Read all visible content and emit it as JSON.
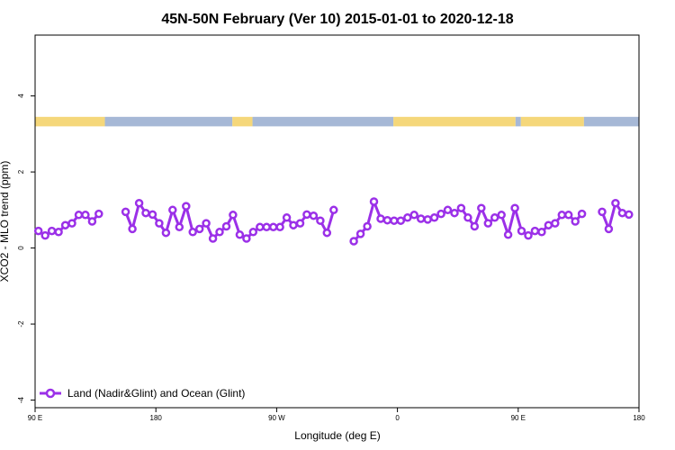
{
  "chart_data": {
    "type": "line",
    "title": "45N-50N February (Ver 10)   2015-01-01 to 2020-12-18",
    "xlabel": "Longitude (deg E)",
    "ylabel": "XCO2 - MLO trend (ppm)",
    "xlim": [
      90,
      540
    ],
    "ylim": [
      -4.2,
      5.6
    ],
    "grid": false,
    "legend_position": "bottom-left",
    "x_ticks": [
      {
        "value": 90,
        "label": "90 E"
      },
      {
        "value": 180,
        "label": "180"
      },
      {
        "value": 270,
        "label": "90 W"
      },
      {
        "value": 360,
        "label": "0"
      },
      {
        "value": 450,
        "label": "90 E"
      },
      {
        "value": 540,
        "label": "180"
      }
    ],
    "y_ticks": [
      {
        "value": -4,
        "label": "-4"
      },
      {
        "value": -2,
        "label": "-2"
      },
      {
        "value": 0,
        "label": "0"
      },
      {
        "value": 2,
        "label": "2"
      },
      {
        "value": 4,
        "label": "4"
      }
    ],
    "land_ocean_strip": {
      "y_range": [
        3.2,
        3.45
      ],
      "land_color": "#f5d77a",
      "ocean_color": "#a6b8d6",
      "segments": [
        {
          "from": 90,
          "to": 142,
          "kind": "land"
        },
        {
          "from": 142,
          "to": 237,
          "kind": "ocean"
        },
        {
          "from": 237,
          "to": 252,
          "kind": "land"
        },
        {
          "from": 252,
          "to": 357,
          "kind": "ocean"
        },
        {
          "from": 357,
          "to": 448,
          "kind": "land"
        },
        {
          "from": 448,
          "to": 452,
          "kind": "ocean"
        },
        {
          "from": 452,
          "to": 499,
          "kind": "land"
        },
        {
          "from": 499,
          "to": 540,
          "kind": "ocean"
        }
      ]
    },
    "series": [
      {
        "name": "Land (Nadir&Glint) and Ocean (Glint)",
        "color": "#9b30e8",
        "segments": [
          [
            [
              92.5,
              0.45
            ],
            [
              97.5,
              0.33
            ],
            [
              102.5,
              0.45
            ],
            [
              107.5,
              0.42
            ],
            [
              112.5,
              0.6
            ],
            [
              117.5,
              0.65
            ],
            [
              122.5,
              0.87
            ],
            [
              127.5,
              0.87
            ],
            [
              132.5,
              0.7
            ],
            [
              137.5,
              0.9
            ]
          ],
          [
            [
              157.5,
              0.95
            ],
            [
              162.5,
              0.5
            ],
            [
              167.5,
              1.18
            ],
            [
              172.5,
              0.92
            ],
            [
              177.5,
              0.88
            ],
            [
              182.5,
              0.65
            ],
            [
              187.5,
              0.4
            ],
            [
              192.5,
              1.0
            ],
            [
              197.5,
              0.55
            ],
            [
              202.5,
              1.1
            ],
            [
              207.5,
              0.42
            ],
            [
              212.5,
              0.5
            ],
            [
              217.5,
              0.65
            ],
            [
              222.5,
              0.25
            ],
            [
              227.5,
              0.42
            ],
            [
              232.5,
              0.57
            ],
            [
              237.5,
              0.87
            ],
            [
              242.5,
              0.35
            ],
            [
              247.5,
              0.25
            ],
            [
              252.5,
              0.42
            ],
            [
              257.5,
              0.55
            ],
            [
              262.5,
              0.55
            ],
            [
              267.5,
              0.55
            ],
            [
              272.5,
              0.55
            ],
            [
              277.5,
              0.8
            ],
            [
              282.5,
              0.6
            ],
            [
              287.5,
              0.65
            ],
            [
              292.5,
              0.88
            ],
            [
              297.5,
              0.85
            ],
            [
              302.5,
              0.72
            ],
            [
              307.5,
              0.4
            ],
            [
              312.5,
              1.0
            ]
          ],
          [
            [
              327.5,
              0.18
            ],
            [
              332.5,
              0.37
            ],
            [
              337.5,
              0.57
            ],
            [
              342.5,
              1.22
            ],
            [
              347.5,
              0.77
            ],
            [
              352.5,
              0.73
            ],
            [
              357.5,
              0.72
            ],
            [
              362.5,
              0.72
            ],
            [
              367.5,
              0.8
            ],
            [
              372.5,
              0.87
            ],
            [
              377.5,
              0.77
            ],
            [
              382.5,
              0.75
            ],
            [
              387.5,
              0.8
            ],
            [
              392.5,
              0.9
            ],
            [
              397.5,
              1.0
            ],
            [
              402.5,
              0.92
            ],
            [
              407.5,
              1.05
            ],
            [
              412.5,
              0.8
            ],
            [
              417.5,
              0.57
            ],
            [
              422.5,
              1.05
            ],
            [
              427.5,
              0.65
            ],
            [
              432.5,
              0.8
            ],
            [
              437.5,
              0.87
            ],
            [
              442.5,
              0.35
            ],
            [
              447.5,
              1.05
            ],
            [
              452.5,
              0.45
            ],
            [
              457.5,
              0.33
            ],
            [
              462.5,
              0.45
            ],
            [
              467.5,
              0.42
            ],
            [
              472.5,
              0.6
            ],
            [
              477.5,
              0.65
            ],
            [
              482.5,
              0.87
            ],
            [
              487.5,
              0.87
            ],
            [
              492.5,
              0.7
            ],
            [
              497.5,
              0.9
            ]
          ],
          [
            [
              512.5,
              0.95
            ],
            [
              517.5,
              0.5
            ],
            [
              522.5,
              1.18
            ],
            [
              527.5,
              0.92
            ],
            [
              532.5,
              0.88
            ]
          ]
        ]
      }
    ]
  }
}
